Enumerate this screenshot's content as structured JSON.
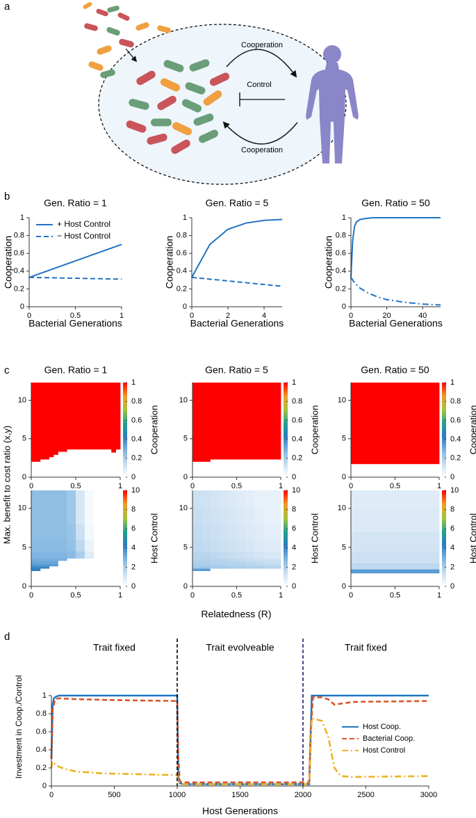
{
  "panel_labels": [
    "a",
    "b",
    "c",
    "d"
  ],
  "diagram": {
    "labels": [
      "Cooperation",
      "Control",
      "Cooperation"
    ]
  },
  "panel_c": {
    "ylabel": "Max. benefit to cost ratio (x,y)",
    "xlabel": "Relatedness (R)"
  },
  "colormap": [
    "#ffffff",
    "#c6ddf1",
    "#7db4e0",
    "#2a7cc2",
    "#21a38e",
    "#a6c438",
    "#f29a26",
    "#ff0000"
  ],
  "chart_data": [
    {
      "type": "line",
      "title": "Gen. Ratio = 1",
      "xlabel": "Bacterial Generations",
      "ylabel": "Cooperation",
      "xlim": [
        0,
        1
      ],
      "xticks": [
        0,
        0.5,
        1
      ],
      "ylim": [
        0,
        1
      ],
      "yticks": [
        0,
        0.2,
        0.4,
        0.6,
        0.8,
        1
      ],
      "legend": "upper left",
      "series": [
        {
          "name": "+ Host Control",
          "color": "#2272c3",
          "style": "solid",
          "x": [
            0,
            1
          ],
          "values": [
            0.33,
            0.7
          ]
        },
        {
          "name": "− Host Control",
          "color": "#2272c3",
          "style": "dashed",
          "x": [
            0,
            1
          ],
          "values": [
            0.33,
            0.31
          ]
        }
      ]
    },
    {
      "type": "line",
      "title": "Gen. Ratio = 5",
      "xlabel": "Bacterial Generations",
      "ylabel": "Cooperation",
      "xlim": [
        0,
        5
      ],
      "xticks": [
        0,
        2,
        4
      ],
      "ylim": [
        0,
        1
      ],
      "yticks": [
        0,
        0.2,
        0.4,
        0.6,
        0.8,
        1
      ],
      "series": [
        {
          "color": "#2272c3",
          "style": "solid",
          "x": [
            0,
            1,
            2,
            3,
            4,
            5
          ],
          "values": [
            0.33,
            0.7,
            0.87,
            0.94,
            0.97,
            0.98
          ]
        },
        {
          "color": "#2272c3",
          "style": "dashed",
          "x": [
            0,
            1,
            2,
            3,
            4,
            5
          ],
          "values": [
            0.33,
            0.31,
            0.29,
            0.27,
            0.25,
            0.23
          ]
        }
      ]
    },
    {
      "type": "line",
      "title": "Gen. Ratio = 50",
      "xlabel": "Bacterial Generations",
      "ylabel": "Cooperation",
      "xlim": [
        0,
        50
      ],
      "xticks": [
        0,
        20,
        40
      ],
      "ylim": [
        0,
        1
      ],
      "yticks": [
        0,
        0.2,
        0.4,
        0.6,
        0.8,
        1
      ],
      "series": [
        {
          "color": "#2272c3",
          "style": "solid",
          "x": [
            0,
            1,
            2,
            3,
            5,
            8,
            12,
            20,
            50
          ],
          "values": [
            0.33,
            0.75,
            0.9,
            0.95,
            0.98,
            0.99,
            1,
            1,
            1
          ]
        },
        {
          "color": "#2272c3",
          "style": "dashdot",
          "x": [
            0,
            2,
            5,
            10,
            15,
            20,
            30,
            40,
            50
          ],
          "values": [
            0.33,
            0.27,
            0.21,
            0.15,
            0.11,
            0.08,
            0.05,
            0.03,
            0.02
          ]
        }
      ]
    },
    {
      "type": "heatmap",
      "title": "Gen. Ratio = 1",
      "xlim": [
        0,
        1
      ],
      "xticks": [
        0,
        0.5,
        1
      ],
      "ylim": [
        0,
        12.3
      ],
      "yticks": [
        0,
        5,
        10
      ],
      "colorbar": {
        "label": "Cooperation",
        "lim": [
          0,
          1
        ],
        "ticks": [
          0,
          0.2,
          0.4,
          0.6,
          0.8,
          1
        ]
      },
      "x_edges": [
        0,
        0.1,
        0.2,
        0.25,
        0.3,
        0.4,
        0.9,
        0.95,
        1
      ],
      "lower": [
        2.0,
        2.3,
        2.6,
        2.9,
        3.3,
        3.6,
        3.2,
        3.6
      ],
      "value": 1
    },
    {
      "type": "heatmap",
      "title": "Gen. Ratio = 5",
      "xlim": [
        0,
        1
      ],
      "xticks": [
        0,
        0.5,
        1
      ],
      "ylim": [
        0,
        12.3
      ],
      "yticks": [
        0,
        5,
        10
      ],
      "colorbar": {
        "label": "Cooperation",
        "lim": [
          0,
          1
        ],
        "ticks": [
          0,
          0.2,
          0.4,
          0.6,
          0.8,
          1
        ]
      },
      "x_edges": [
        0,
        0.2,
        1
      ],
      "lower": [
        2.0,
        2.3
      ],
      "value": 1
    },
    {
      "type": "heatmap",
      "title": "Gen. Ratio = 50",
      "xlim": [
        0,
        1
      ],
      "xticks": [
        0,
        0.5,
        1
      ],
      "ylim": [
        0,
        12.3
      ],
      "yticks": [
        0,
        5,
        10
      ],
      "colorbar": {
        "label": "Cooperation",
        "lim": [
          0,
          1
        ],
        "ticks": [
          0,
          0.2,
          0.4,
          0.6,
          0.8,
          1
        ]
      },
      "x_edges": [
        0,
        1
      ],
      "lower": [
        1.7
      ],
      "value": 1
    },
    {
      "type": "heatmap",
      "xlim": [
        0,
        1
      ],
      "xticks": [
        0,
        0.5,
        1
      ],
      "ylim": [
        0,
        12.3
      ],
      "yticks": [
        0,
        5,
        10
      ],
      "colorbar": {
        "label": "Host Control",
        "lim": [
          0,
          10
        ],
        "ticks": [
          0,
          2,
          4,
          6,
          8,
          10
        ]
      },
      "x_edges": [
        0,
        0.1,
        0.2,
        0.3,
        0.4,
        0.5,
        0.6,
        0.7,
        0.8,
        0.9,
        1
      ],
      "y_edges": [
        2.0,
        2.3,
        2.6,
        2.9,
        3.3,
        3.6,
        4.5,
        6,
        8,
        10,
        12.3
      ],
      "values": [
        [
          4.5,
          null,
          null,
          null,
          null,
          null,
          null,
          null,
          null,
          null
        ],
        [
          4,
          4,
          null,
          null,
          null,
          null,
          null,
          null,
          null,
          null
        ],
        [
          3.5,
          3.5,
          3.5,
          null,
          null,
          null,
          null,
          null,
          null,
          null
        ],
        [
          3.2,
          3.2,
          3.2,
          null,
          null,
          null,
          null,
          null,
          null,
          null
        ],
        [
          3,
          3,
          3,
          3,
          null,
          null,
          null,
          null,
          null,
          null
        ],
        [
          2.8,
          2.8,
          2.8,
          2.8,
          2.6,
          2,
          0.8,
          null,
          null,
          null
        ],
        [
          2.6,
          2.6,
          2.6,
          2.6,
          2.4,
          1.6,
          0.5,
          null,
          null,
          null
        ],
        [
          2.5,
          2.5,
          2.5,
          2.5,
          2.3,
          1.3,
          0.3,
          null,
          null,
          null
        ],
        [
          2.5,
          2.5,
          2.5,
          2.5,
          2.2,
          1,
          0.2,
          null,
          null,
          null
        ],
        [
          2.5,
          2.5,
          2.5,
          2.5,
          2.2,
          1,
          0.2,
          null,
          null,
          null
        ]
      ]
    },
    {
      "type": "heatmap",
      "xlim": [
        0,
        1
      ],
      "xticks": [
        0,
        0.5,
        1
      ],
      "ylim": [
        0,
        12.3
      ],
      "yticks": [
        0,
        5,
        10
      ],
      "colorbar": {
        "label": "Host Control",
        "lim": [
          0,
          10
        ],
        "ticks": [
          0,
          2,
          4,
          6,
          8,
          10
        ]
      },
      "x_edges": [
        0,
        0.1,
        0.2,
        0.3,
        0.4,
        0.5,
        0.6,
        0.7,
        0.8,
        0.9,
        1
      ],
      "y_edges": [
        2.0,
        2.3,
        2.6,
        2.9,
        3.3,
        3.6,
        4.5,
        6,
        8,
        10,
        12.3
      ],
      "values": [
        [
          3.5,
          3.5,
          null,
          null,
          null,
          null,
          null,
          null,
          null,
          null
        ],
        [
          2.2,
          2.2,
          2.1,
          2.1,
          2,
          2,
          1.9,
          1.9,
          1.8,
          1.8
        ],
        [
          2,
          2,
          1.9,
          1.9,
          1.8,
          1.8,
          1.7,
          1.7,
          1.6,
          1.6
        ],
        [
          1.9,
          1.9,
          1.8,
          1.8,
          1.7,
          1.7,
          1.6,
          1.5,
          1.4,
          1.4
        ],
        [
          1.8,
          1.8,
          1.7,
          1.7,
          1.6,
          1.5,
          1.4,
          1.3,
          1.2,
          1.2
        ],
        [
          1.7,
          1.7,
          1.6,
          1.5,
          1.4,
          1.3,
          1.2,
          1.1,
          1,
          1
        ],
        [
          1.6,
          1.5,
          1.4,
          1.3,
          1.2,
          1.1,
          1,
          0.9,
          0.8,
          0.8
        ],
        [
          1.5,
          1.4,
          1.3,
          1.2,
          1.1,
          1,
          0.9,
          0.8,
          0.7,
          0.7
        ],
        [
          1.4,
          1.3,
          1.2,
          1.1,
          1,
          0.9,
          0.8,
          0.7,
          0.6,
          0.6
        ],
        [
          1.3,
          1.2,
          1.1,
          1,
          0.9,
          0.8,
          0.7,
          0.6,
          0.6,
          0.6
        ]
      ]
    },
    {
      "type": "heatmap",
      "xlim": [
        0,
        1
      ],
      "xticks": [
        0,
        0.5,
        1
      ],
      "ylim": [
        0,
        12.3
      ],
      "yticks": [
        0,
        5,
        10
      ],
      "colorbar": {
        "label": "Host Control",
        "lim": [
          0,
          10
        ],
        "ticks": [
          0,
          2,
          4,
          6,
          8,
          10
        ]
      },
      "x_edges": [
        0,
        0.1,
        0.2,
        0.3,
        0.4,
        0.5,
        0.6,
        0.7,
        0.8,
        0.9,
        1
      ],
      "y_edges": [
        1.7,
        2.2,
        3,
        4.5,
        7,
        10,
        12.3
      ],
      "values": [
        [
          3.5,
          3.5,
          3.5,
          3.5,
          3.5,
          3.5,
          3.5,
          3.5,
          3.5,
          3.5
        ],
        [
          1.6,
          1.6,
          1.6,
          1.6,
          1.6,
          1.6,
          1.6,
          1.6,
          1.6,
          1.6
        ],
        [
          1.3,
          1.3,
          1.3,
          1.3,
          1.3,
          1.3,
          1.3,
          1.3,
          1.3,
          1.3
        ],
        [
          1.1,
          1.1,
          1.1,
          1.1,
          1.1,
          1.1,
          1.1,
          1.1,
          1.1,
          1.1
        ],
        [
          0.9,
          0.9,
          0.9,
          0.9,
          0.9,
          0.9,
          0.9,
          0.9,
          0.9,
          0.9
        ],
        [
          0.8,
          0.8,
          0.8,
          0.8,
          0.8,
          0.8,
          0.8,
          0.8,
          0.8,
          0.8
        ]
      ]
    },
    {
      "type": "line",
      "xlabel": "Host Generations",
      "ylabel": "Investment in Coop./Control",
      "xlim": [
        0,
        3000
      ],
      "xticks": [
        0,
        500,
        1000,
        1500,
        2000,
        2500,
        3000
      ],
      "ylim": [
        0,
        1
      ],
      "yticks": [
        0,
        0.2,
        0.4,
        0.6,
        0.8,
        1
      ],
      "legend": "center right",
      "vlines": [
        {
          "value": 1000,
          "color": "#000000"
        },
        {
          "value": 2000,
          "color": "#1a1a6e"
        }
      ],
      "annotations": [
        "Trait fixed",
        "Trait evolveable",
        "Trait fixed"
      ],
      "series": [
        {
          "name": "Host Coop.",
          "color": "#1f77c4",
          "style": "solid",
          "x": [
            0,
            10,
            20,
            40,
            60,
            100,
            1000,
            1005,
            1010,
            1020,
            1050,
            2000,
            2050,
            2060,
            2070,
            2100,
            3000
          ],
          "values": [
            0.3,
            0.9,
            0.97,
            0.99,
            1,
            1,
            1,
            0.5,
            0.1,
            0.03,
            0.02,
            0.02,
            0.02,
            0.5,
            1,
            1,
            1
          ]
        },
        {
          "name": "Bacterial Coop.",
          "color": "#d9542a",
          "style": "dashed",
          "x": [
            0,
            10,
            30,
            60,
            200,
            500,
            1000,
            1010,
            1020,
            1050,
            2000,
            2050,
            2060,
            2080,
            2150,
            2200,
            2250,
            2400,
            3000
          ],
          "values": [
            0.3,
            0.85,
            0.96,
            0.97,
            0.96,
            0.95,
            0.94,
            0.3,
            0.05,
            0.04,
            0.04,
            0.04,
            0.6,
            0.98,
            0.98,
            0.96,
            0.9,
            0.93,
            0.94
          ]
        },
        {
          "name": "Host Control",
          "color": "#edb120",
          "style": "dashdot",
          "x": [
            0,
            5,
            20,
            50,
            100,
            200,
            400,
            700,
            1000,
            1010,
            1020,
            1050,
            2000,
            2050,
            2070,
            2100,
            2150,
            2200,
            2250,
            2300,
            2400,
            3000
          ],
          "values": [
            0.2,
            0.27,
            0.25,
            0.22,
            0.19,
            0.16,
            0.14,
            0.13,
            0.12,
            0.05,
            0.03,
            0.02,
            0.02,
            0.02,
            0.75,
            0.74,
            0.72,
            0.55,
            0.2,
            0.11,
            0.1,
            0.11
          ]
        }
      ]
    }
  ]
}
